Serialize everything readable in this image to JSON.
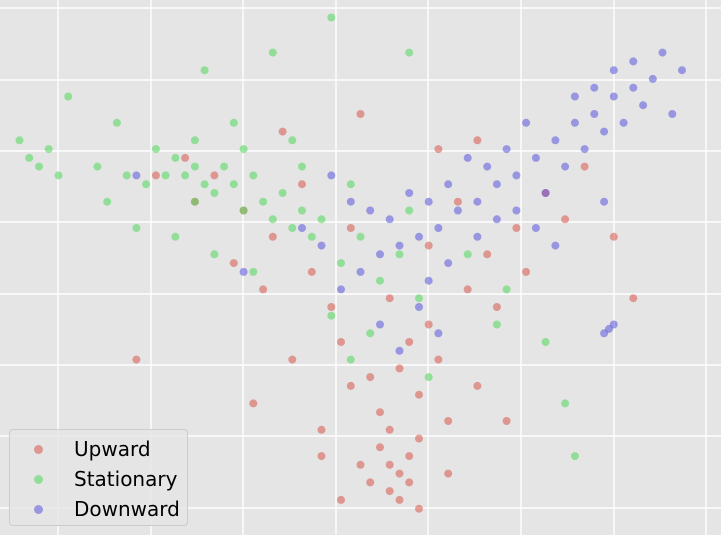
{
  "chart_data": {
    "type": "scatter",
    "title": "",
    "xlabel": "",
    "ylabel": "",
    "grid": true,
    "legend_position": "bottom-left",
    "xlim": [
      -4.0,
      3.4
    ],
    "ylim": [
      -3.2,
      2.9
    ],
    "series": [
      {
        "name": "Upward",
        "color": "#d9564a",
        "points": [
          [
            0.0,
            -2.4
          ],
          [
            0.1,
            -2.5
          ],
          [
            -0.1,
            -2.2
          ],
          [
            0.2,
            -2.3
          ],
          [
            0.0,
            -2.7
          ],
          [
            -0.2,
            -2.6
          ],
          [
            0.3,
            -2.1
          ],
          [
            0.1,
            -2.8
          ],
          [
            -0.3,
            -2.4
          ],
          [
            0.2,
            -2.6
          ],
          [
            0.0,
            -2.0
          ],
          [
            -0.1,
            -1.8
          ],
          [
            0.3,
            -1.6
          ],
          [
            -0.4,
            -1.5
          ],
          [
            0.5,
            -1.2
          ],
          [
            -0.5,
            -1.0
          ],
          [
            0.1,
            -1.3
          ],
          [
            0.4,
            -0.8
          ],
          [
            -0.6,
            -0.6
          ],
          [
            0.8,
            -0.4
          ],
          [
            -0.8,
            -0.2
          ],
          [
            1.0,
            0.0
          ],
          [
            -1.2,
            0.2
          ],
          [
            1.3,
            0.3
          ],
          [
            -1.5,
            0.5
          ],
          [
            1.6,
            0.7
          ],
          [
            -1.8,
            0.9
          ],
          [
            2.0,
            1.0
          ],
          [
            -2.1,
            1.1
          ],
          [
            0.2,
            -1.0
          ],
          [
            -0.2,
            -1.4
          ],
          [
            0.6,
            -1.9
          ],
          [
            -0.7,
            -2.0
          ],
          [
            0.9,
            -1.5
          ],
          [
            -1.0,
            -1.2
          ],
          [
            1.1,
            -0.6
          ],
          [
            -1.3,
            -0.4
          ],
          [
            0.0,
            -0.5
          ],
          [
            0.4,
            0.1
          ],
          [
            -0.4,
            0.3
          ],
          [
            0.7,
            0.6
          ],
          [
            -0.9,
            0.8
          ],
          [
            1.4,
            -0.2
          ],
          [
            -1.6,
            -0.1
          ],
          [
            1.8,
            0.4
          ],
          [
            -2.0,
            0.6
          ],
          [
            2.3,
            0.2
          ],
          [
            -2.4,
            0.9
          ],
          [
            0.3,
            -2.9
          ],
          [
            -0.5,
            -2.8
          ],
          [
            0.6,
            -2.5
          ],
          [
            -0.7,
            -2.3
          ],
          [
            1.2,
            -1.9
          ],
          [
            -1.4,
            -1.7
          ],
          [
            -2.6,
            -1.2
          ],
          [
            2.5,
            -0.5
          ],
          [
            -1.1,
            1.4
          ],
          [
            0.9,
            1.3
          ],
          [
            -0.3,
            1.6
          ],
          [
            0.5,
            1.2
          ]
        ]
      },
      {
        "name": "Stationary",
        "color": "#4ed85a",
        "points": [
          [
            -2.1,
            0.9
          ],
          [
            -2.0,
            1.0
          ],
          [
            -1.9,
            0.8
          ],
          [
            -2.2,
            1.1
          ],
          [
            -1.8,
            0.7
          ],
          [
            -2.3,
            0.9
          ],
          [
            -1.7,
            1.0
          ],
          [
            -2.0,
            0.6
          ],
          [
            -1.6,
            0.8
          ],
          [
            -2.4,
            1.2
          ],
          [
            -1.5,
            0.5
          ],
          [
            -1.4,
            0.9
          ],
          [
            -1.3,
            0.6
          ],
          [
            -2.5,
            0.8
          ],
          [
            -1.2,
            0.4
          ],
          [
            -1.1,
            0.7
          ],
          [
            -1.0,
            0.3
          ],
          [
            -0.9,
            0.5
          ],
          [
            -0.8,
            0.2
          ],
          [
            -0.7,
            0.4
          ],
          [
            -3.7,
            1.1
          ],
          [
            -3.6,
            1.0
          ],
          [
            -3.5,
            1.2
          ],
          [
            -3.8,
            1.3
          ],
          [
            -3.4,
            0.9
          ],
          [
            -3.0,
            1.0
          ],
          [
            -2.7,
            0.9
          ],
          [
            -2.8,
            1.5
          ],
          [
            -3.3,
            1.8
          ],
          [
            -2.9,
            0.6
          ],
          [
            -0.5,
            -0.1
          ],
          [
            -0.3,
            0.2
          ],
          [
            -0.1,
            -0.3
          ],
          [
            0.1,
            0.0
          ],
          [
            0.3,
            -0.5
          ],
          [
            -0.6,
            -0.7
          ],
          [
            -0.2,
            -0.9
          ],
          [
            0.4,
            -1.4
          ],
          [
            -0.4,
            -1.2
          ],
          [
            0.2,
            0.5
          ],
          [
            -1.9,
            2.1
          ],
          [
            -1.2,
            2.3
          ],
          [
            -0.6,
            2.7
          ],
          [
            0.2,
            2.3
          ],
          [
            -1.6,
            1.5
          ],
          [
            -1.0,
            1.3
          ],
          [
            0.8,
            0.0
          ],
          [
            1.2,
            -0.4
          ],
          [
            1.6,
            -1.0
          ],
          [
            1.8,
            -1.7
          ],
          [
            1.9,
            -2.3
          ],
          [
            1.1,
            -0.8
          ],
          [
            -2.6,
            0.3
          ],
          [
            -2.2,
            0.2
          ],
          [
            -1.8,
            0.0
          ],
          [
            -1.4,
            -0.2
          ],
          [
            -2.0,
            1.3
          ],
          [
            -1.5,
            1.2
          ],
          [
            -0.9,
            1.0
          ],
          [
            -0.4,
            0.8
          ]
        ]
      },
      {
        "name": "Downward",
        "color": "#5a55dc",
        "points": [
          [
            1.5,
            1.1
          ],
          [
            1.7,
            1.3
          ],
          [
            1.9,
            1.5
          ],
          [
            2.1,
            1.6
          ],
          [
            2.3,
            1.8
          ],
          [
            2.5,
            1.9
          ],
          [
            1.3,
            0.9
          ],
          [
            1.1,
            0.8
          ],
          [
            0.9,
            0.6
          ],
          [
            0.7,
            0.5
          ],
          [
            0.5,
            0.3
          ],
          [
            0.3,
            0.2
          ],
          [
            0.1,
            0.1
          ],
          [
            -0.1,
            0.0
          ],
          [
            -0.3,
            -0.2
          ],
          [
            -0.5,
            -0.4
          ],
          [
            -0.7,
            0.1
          ],
          [
            -0.9,
            0.3
          ],
          [
            1.6,
            0.7
          ],
          [
            1.8,
            1.0
          ],
          [
            2.0,
            1.2
          ],
          [
            2.2,
            1.4
          ],
          [
            2.4,
            1.5
          ],
          [
            2.6,
            1.7
          ],
          [
            2.7,
            2.0
          ],
          [
            2.5,
            2.2
          ],
          [
            2.3,
            2.1
          ],
          [
            2.1,
            1.9
          ],
          [
            1.9,
            1.8
          ],
          [
            1.4,
            1.5
          ],
          [
            1.2,
            1.2
          ],
          [
            1.0,
            1.0
          ],
          [
            0.8,
            1.1
          ],
          [
            0.6,
            0.8
          ],
          [
            0.4,
            0.6
          ],
          [
            0.2,
            0.7
          ],
          [
            0.0,
            0.4
          ],
          [
            -0.2,
            0.5
          ],
          [
            -0.4,
            0.6
          ],
          [
            -0.6,
            0.9
          ],
          [
            0.3,
            -0.6
          ],
          [
            0.5,
            -0.9
          ],
          [
            0.1,
            -1.1
          ],
          [
            -0.1,
            -0.8
          ],
          [
            0.4,
            -0.3
          ],
          [
            0.6,
            -0.1
          ],
          [
            0.9,
            0.2
          ],
          [
            1.1,
            0.4
          ],
          [
            1.3,
            0.5
          ],
          [
            1.5,
            0.3
          ],
          [
            2.8,
            2.3
          ],
          [
            3.0,
            2.1
          ],
          [
            2.9,
            1.6
          ],
          [
            2.2,
            0.6
          ],
          [
            1.7,
            0.1
          ],
          [
            2.3,
            -0.8
          ],
          [
            2.2,
            -0.9
          ],
          [
            2.25,
            -0.85
          ],
          [
            -1.5,
            -0.2
          ],
          [
            -2.6,
            0.9
          ]
        ]
      }
    ]
  },
  "legend": {
    "items": [
      {
        "label": "Upward",
        "color": "#d9564a"
      },
      {
        "label": "Stationary",
        "color": "#4ed85a"
      },
      {
        "label": "Downward",
        "color": "#5a55dc"
      }
    ]
  }
}
